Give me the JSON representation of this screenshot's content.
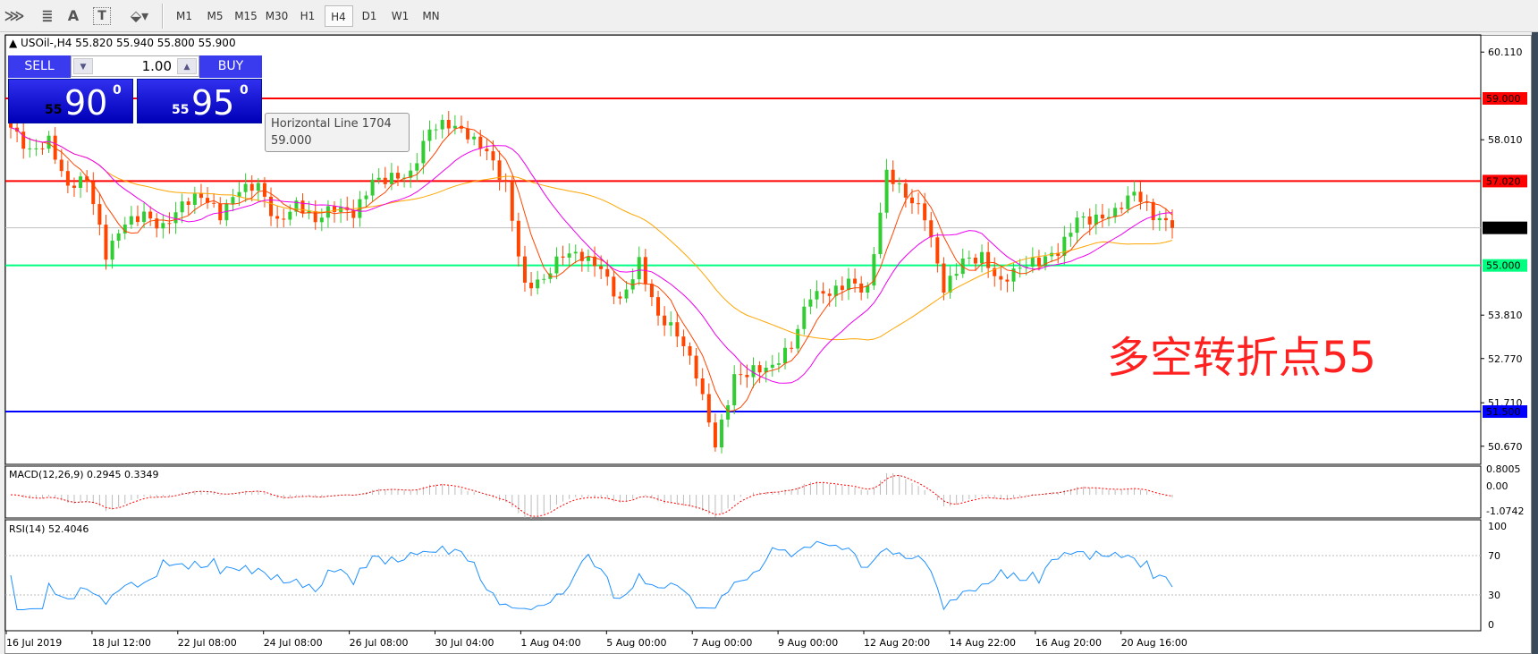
{
  "toolbar": {
    "icons": [
      "objects-e-icon",
      "fibonacci-f-icon",
      "text-icon",
      "text-label-icon",
      "arrows-dropdown-icon"
    ],
    "timeframes": [
      "M1",
      "M5",
      "M15",
      "M30",
      "H1",
      "H4",
      "D1",
      "W1",
      "MN"
    ],
    "active_timeframe": "H4"
  },
  "chart": {
    "symbol_line": "USOil-,H4  55.820 55.940 55.800 55.900",
    "trade_panel": {
      "sell_label": "SELL",
      "buy_label": "BUY",
      "lot": "1.00",
      "sell_big": "55",
      "sell_main": "90",
      "sell_sup": "0",
      "buy_big": "55",
      "buy_main": "95",
      "buy_sup": "0"
    },
    "tooltip": {
      "line1": "Horizontal Line 1704",
      "line2": "59.000"
    },
    "annotation": "多空转折点55",
    "price_ticks": [
      "60.110",
      "58.010",
      "52.770",
      "53.810",
      "51.710",
      "50.670"
    ],
    "price_tick_values": [
      60.11,
      58.01,
      52.77,
      53.81,
      51.71,
      50.67
    ],
    "hlines": [
      {
        "price": 59.0,
        "label": "59.000",
        "color": "#ff0000"
      },
      {
        "price": 57.02,
        "label": "57.020",
        "color": "#ff0000"
      },
      {
        "price": 55.9,
        "label": "55.900",
        "color": "#c0c0c0",
        "tag": "#000000"
      },
      {
        "price": 55.0,
        "label": "55.000",
        "color": "#00ff80"
      },
      {
        "price": 51.5,
        "label": "51.500",
        "color": "#0000ff"
      }
    ],
    "time_labels": [
      "16 Jul 2019",
      "18 Jul 12:00",
      "22 Jul 08:00",
      "24 Jul 08:00",
      "26 Jul 08:00",
      "30 Jul 04:00",
      "1 Aug 04:00",
      "5 Aug 00:00",
      "7 Aug 00:00",
      "9 Aug 00:00",
      "12 Aug 20:00",
      "14 Aug 22:00",
      "16 Aug 20:00",
      "20 Aug 16:00"
    ],
    "colors": {
      "bull": "#32cd32",
      "bear": "#ff4500",
      "ma_slow": "#ffa500",
      "ma_fast": "#ff4500",
      "ma_mid": "#ee00ee",
      "rsi": "#1e90ff",
      "macd_signal": "#ff0000"
    }
  },
  "macd": {
    "label": "MACD(12,26,9) 0.2945 0.3349",
    "ticks": [
      "0.8005",
      "0.00",
      "-1.0742"
    ]
  },
  "rsi": {
    "label": "RSI(14) 52.4046",
    "ticks": [
      "100",
      "70",
      "30",
      "0"
    ]
  },
  "chart_data": {
    "type": "candlestick",
    "approx_closes": [
      58.3,
      57.7,
      58.0,
      56.9,
      57.1,
      55.25,
      56.0,
      56.2,
      55.9,
      56.5,
      56.7,
      56.2,
      56.8,
      56.9,
      56.0,
      56.5,
      56.1,
      56.4,
      56.2,
      57.0,
      57.1,
      57.2,
      58.3,
      58.4,
      58.1,
      57.7,
      56.9,
      54.5,
      54.7,
      55.3,
      55.2,
      54.9,
      54.1,
      55.1,
      53.8,
      53.4,
      52.4,
      50.65,
      52.3,
      52.5,
      52.6,
      53.1,
      54.3,
      54.3,
      54.6,
      54.4,
      57.25,
      56.7,
      56.2,
      54.4,
      55.1,
      55.2,
      54.6,
      55.0,
      55.1,
      55.3,
      56.1,
      56.1,
      56.3,
      56.8,
      56.2,
      55.9
    ],
    "ylim": [
      50.4,
      60.5
    ]
  }
}
